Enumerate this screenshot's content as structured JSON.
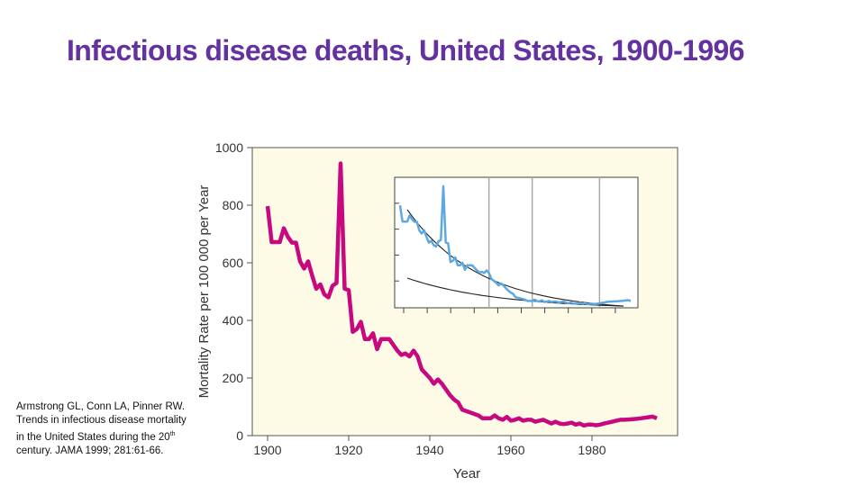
{
  "title": "Infectious disease deaths, United States, 1900-1996",
  "citation": {
    "before_sup": "Armstrong GL, Conn LA, Pinner RW. Trends in infectious disease mortality in the United States during the 20",
    "sup": "th",
    "after_sup": " century. JAMA 1999; 281:61-66."
  },
  "colors": {
    "main_line": "#c8087e",
    "inset_line": "#5ea8e2",
    "plot_bg": "#fdfbe6",
    "title": "#6331a0"
  },
  "chart_data": [
    {
      "type": "line",
      "name": "main",
      "title": "",
      "xlabel": "Year",
      "ylabel": "Mortality Rate per 100 000 per Year",
      "xlim": [
        1896,
        1997
      ],
      "ylim": [
        0,
        1000
      ],
      "xticks": [
        "1900",
        "1920",
        "1940",
        "1960",
        "1980"
      ],
      "yticks": [
        "0",
        "200",
        "400",
        "600",
        "800",
        "1000"
      ],
      "grid": false,
      "series": [
        {
          "name": "Infectious disease mortality",
          "x": [
            1900,
            1901,
            1902,
            1903,
            1904,
            1905,
            1906,
            1907,
            1908,
            1909,
            1910,
            1911,
            1912,
            1913,
            1914,
            1915,
            1916,
            1917,
            1918,
            1919,
            1920,
            1921,
            1922,
            1923,
            1924,
            1925,
            1926,
            1927,
            1928,
            1929,
            1930,
            1931,
            1932,
            1933,
            1934,
            1935,
            1936,
            1937,
            1938,
            1939,
            1940,
            1941,
            1942,
            1943,
            1944,
            1945,
            1946,
            1947,
            1948,
            1949,
            1950,
            1951,
            1952,
            1953,
            1954,
            1955,
            1956,
            1957,
            1958,
            1959,
            1960,
            1961,
            1962,
            1963,
            1964,
            1965,
            1966,
            1967,
            1968,
            1969,
            1970,
            1971,
            1972,
            1973,
            1974,
            1975,
            1976,
            1977,
            1978,
            1979,
            1980,
            1981,
            1982,
            1983,
            1984,
            1985,
            1986,
            1987,
            1988,
            1989,
            1990,
            1991,
            1992,
            1993,
            1994,
            1995,
            1996
          ],
          "y": [
            797,
            672,
            672,
            672,
            720,
            690,
            670,
            670,
            605,
            580,
            605,
            555,
            510,
            525,
            490,
            480,
            520,
            530,
            945,
            510,
            505,
            360,
            370,
            395,
            335,
            335,
            355,
            300,
            335,
            335,
            335,
            315,
            295,
            280,
            285,
            275,
            295,
            275,
            230,
            215,
            200,
            180,
            195,
            180,
            160,
            140,
            125,
            115,
            90,
            85,
            80,
            75,
            70,
            60,
            60,
            60,
            70,
            60,
            55,
            65,
            52,
            55,
            60,
            52,
            55,
            55,
            48,
            52,
            55,
            48,
            42,
            48,
            42,
            40,
            42,
            45,
            38,
            42,
            35,
            38,
            38,
            36,
            38,
            42,
            45,
            48,
            52,
            55,
            55,
            56,
            57,
            58,
            60,
            62,
            64,
            66,
            60
          ]
        }
      ]
    },
    {
      "type": "line",
      "name": "inset",
      "xlim": [
        1898,
        1998
      ],
      "ylim": [
        0,
        1000
      ],
      "grid": false,
      "vertical_reference_lines": [
        1937,
        1955,
        1983
      ],
      "series": [
        {
          "name": "Infectious disease mortality",
          "ref": "main"
        },
        {
          "name": "upper trend curve",
          "start": [
            1903,
            764
          ],
          "end": [
            1993,
            20
          ]
        },
        {
          "name": "lower trend curve",
          "start": [
            1903,
            236
          ],
          "end": [
            1993,
            20
          ]
        }
      ]
    }
  ]
}
